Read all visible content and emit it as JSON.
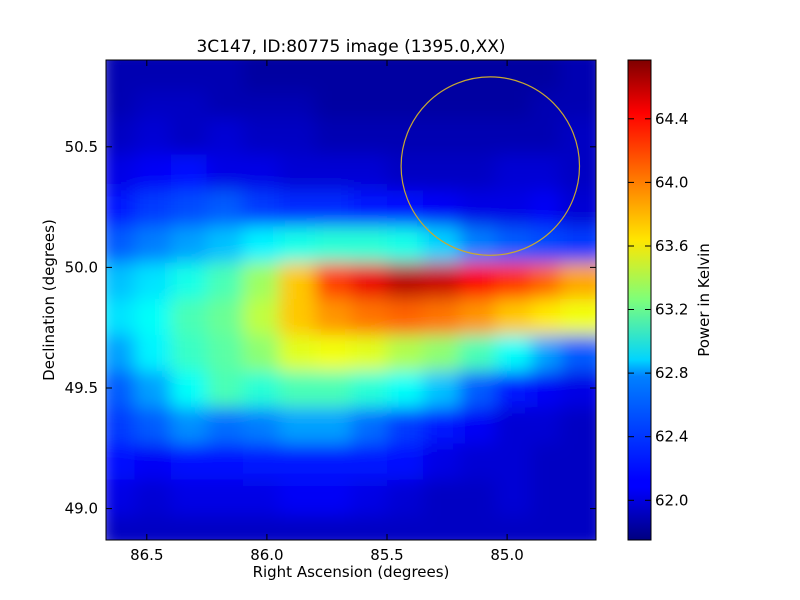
{
  "chart_data": {
    "type": "heatmap",
    "title": "3C147, ID:80775 image (1395.0,XX)",
    "xlabel": "Right Ascension (degrees)",
    "ylabel": "Declination (degrees)",
    "xlim": [
      86.67,
      84.63
    ],
    "ylim": [
      48.87,
      50.86
    ],
    "x_ticks": [
      "86.5",
      "86.0",
      "85.5",
      "85.0"
    ],
    "x_tick_values": [
      86.5,
      86.0,
      85.5,
      85.0
    ],
    "y_ticks": [
      "49.0",
      "49.5",
      "50.0",
      "50.5"
    ],
    "y_tick_values": [
      49.0,
      49.5,
      50.0,
      50.5
    ],
    "colorbar": {
      "label": "Power in Kelvin",
      "range": [
        61.75,
        64.77
      ],
      "ticks": [
        "62.0",
        "62.4",
        "62.8",
        "63.2",
        "63.6",
        "64.0",
        "64.4"
      ],
      "tick_values": [
        62.0,
        62.4,
        62.8,
        63.2,
        63.6,
        64.0,
        64.4
      ],
      "colormap": "jet"
    },
    "circle": {
      "ra": 85.07,
      "dec": 50.42,
      "radius_deg": 0.37,
      "color": "#c8a832"
    },
    "x": [
      86.6,
      86.45,
      86.3,
      86.15,
      86.0,
      85.85,
      85.7,
      85.55,
      85.4,
      85.25,
      85.1,
      84.95,
      84.8,
      84.68
    ],
    "y": [
      48.92,
      49.07,
      49.22,
      49.37,
      49.52,
      49.67,
      49.82,
      49.97,
      50.12,
      50.27,
      50.42,
      50.57,
      50.72,
      50.83
    ],
    "values": [
      [
        61.95,
        61.95,
        61.95,
        61.95,
        61.95,
        61.95,
        61.95,
        61.95,
        61.95,
        61.95,
        61.95,
        61.95,
        61.95,
        61.95
      ],
      [
        62.05,
        62.0,
        62.05,
        62.05,
        62.05,
        62.1,
        62.1,
        62.05,
        62.0,
        61.95,
        61.95,
        62.0,
        61.95,
        61.95
      ],
      [
        62.15,
        62.1,
        62.15,
        62.15,
        62.2,
        62.2,
        62.2,
        62.2,
        62.15,
        62.05,
        62.0,
        62.0,
        61.95,
        61.95
      ],
      [
        62.3,
        62.4,
        62.55,
        62.45,
        62.5,
        62.6,
        62.6,
        62.45,
        62.3,
        62.2,
        62.1,
        62.0,
        62.0,
        61.95
      ],
      [
        62.4,
        62.6,
        62.9,
        63.1,
        63.0,
        63.1,
        63.1,
        63.0,
        62.9,
        62.7,
        62.4,
        62.2,
        62.1,
        62.05
      ],
      [
        62.6,
        62.85,
        63.05,
        63.15,
        63.3,
        63.55,
        63.6,
        63.55,
        63.4,
        63.3,
        63.1,
        62.9,
        62.6,
        62.4
      ],
      [
        62.8,
        62.9,
        63.1,
        63.2,
        63.45,
        63.8,
        63.95,
        64.05,
        64.1,
        64.05,
        63.95,
        63.8,
        63.7,
        63.6
      ],
      [
        62.7,
        62.8,
        62.95,
        63.1,
        63.35,
        63.8,
        64.2,
        64.45,
        64.6,
        64.55,
        64.4,
        64.25,
        64.1,
        63.9
      ],
      [
        62.4,
        62.5,
        62.6,
        62.7,
        62.85,
        62.95,
        63.0,
        63.0,
        62.95,
        62.75,
        62.5,
        62.4,
        62.35,
        62.3
      ],
      [
        62.2,
        62.3,
        62.35,
        62.4,
        62.3,
        62.25,
        62.25,
        62.2,
        62.15,
        62.1,
        62.05,
        62.05,
        62.1,
        62.0
      ],
      [
        62.05,
        62.1,
        62.15,
        62.05,
        62.05,
        62.0,
        62.0,
        62.0,
        61.95,
        61.95,
        61.95,
        62.0,
        62.0,
        61.95
      ],
      [
        61.95,
        62.0,
        61.95,
        62.0,
        61.95,
        61.95,
        61.9,
        61.9,
        61.9,
        61.9,
        61.9,
        61.9,
        61.9,
        61.95
      ],
      [
        61.9,
        61.95,
        61.95,
        61.9,
        61.9,
        61.9,
        61.85,
        61.85,
        61.85,
        61.85,
        61.85,
        61.85,
        61.9,
        61.9
      ],
      [
        61.9,
        61.9,
        61.9,
        61.9,
        61.85,
        61.85,
        61.85,
        61.85,
        61.85,
        61.85,
        61.85,
        61.85,
        61.85,
        61.9
      ]
    ]
  }
}
